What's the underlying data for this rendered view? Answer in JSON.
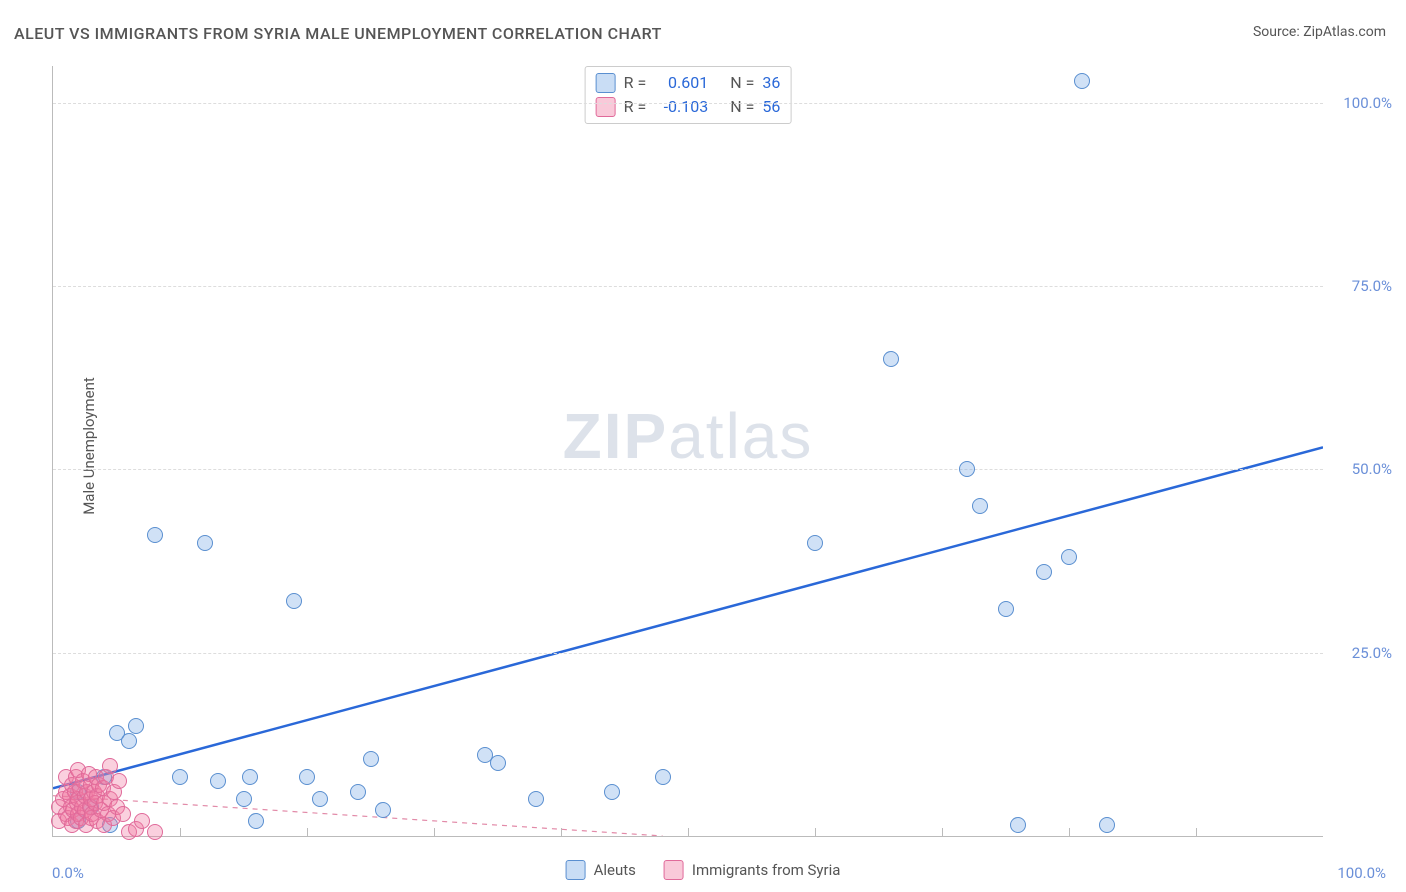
{
  "title": "ALEUT VS IMMIGRANTS FROM SYRIA MALE UNEMPLOYMENT CORRELATION CHART",
  "source": "Source: ZipAtlas.com",
  "ylabel": "Male Unemployment",
  "watermark_bold": "ZIP",
  "watermark_light": "atlas",
  "chart": {
    "type": "scatter",
    "xlim": [
      0,
      100
    ],
    "ylim": [
      0,
      105
    ],
    "yticks": [
      25,
      50,
      75,
      100
    ],
    "ytick_labels": [
      "25.0%",
      "50.0%",
      "75.0%",
      "100.0%"
    ],
    "xtick_minor": [
      10,
      20,
      30,
      40,
      50,
      60,
      70,
      80,
      90
    ],
    "xlabel_0": "0.0%",
    "xlabel_100": "100.0%",
    "background_color": "#ffffff",
    "grid_color": "#dddddd",
    "tick_color": "#6a8fd8",
    "series": [
      {
        "name": "Aleuts",
        "fill": "rgba(120,170,230,0.35)",
        "stroke": "#5a8fd0",
        "marker_radius": 7,
        "trend": {
          "x1": 0,
          "y1": 6.5,
          "x2": 100,
          "y2": 53,
          "color": "#2a68d8",
          "width": 2.5,
          "dash": "none"
        },
        "stats": {
          "R_label": "R =",
          "R": "0.601",
          "N_label": "N =",
          "N": "36"
        },
        "legend_fill": "rgba(120,170,230,0.4)",
        "legend_stroke": "#5a8fd0",
        "points": [
          [
            2,
            2
          ],
          [
            2,
            6
          ],
          [
            3,
            4
          ],
          [
            4,
            8
          ],
          [
            4.5,
            1.5
          ],
          [
            5,
            14
          ],
          [
            6,
            13
          ],
          [
            6.5,
            15
          ],
          [
            8,
            41
          ],
          [
            10,
            8
          ],
          [
            12,
            40
          ],
          [
            13,
            7.5
          ],
          [
            15,
            5
          ],
          [
            15.5,
            8
          ],
          [
            16,
            2
          ],
          [
            19,
            32
          ],
          [
            20,
            8
          ],
          [
            21,
            5
          ],
          [
            24,
            6
          ],
          [
            25,
            10.5
          ],
          [
            26,
            3.5
          ],
          [
            34,
            11
          ],
          [
            35,
            10
          ],
          [
            38,
            5
          ],
          [
            44,
            6
          ],
          [
            48,
            8
          ],
          [
            60,
            40
          ],
          [
            66,
            65
          ],
          [
            72,
            50
          ],
          [
            73,
            45
          ],
          [
            75,
            31
          ],
          [
            76,
            1.5
          ],
          [
            78,
            36
          ],
          [
            80,
            38
          ],
          [
            81,
            103
          ],
          [
            83,
            1.5
          ]
        ]
      },
      {
        "name": "Immigrants from Syria",
        "fill": "rgba(240,120,160,0.35)",
        "stroke": "#e06a9a",
        "marker_radius": 7,
        "trend": {
          "x1": 0,
          "y1": 5.5,
          "x2": 48,
          "y2": 0,
          "color": "#e28aa8",
          "width": 1.2,
          "dash": "5,5"
        },
        "stats": {
          "R_label": "R =",
          "R": "-0.103",
          "N_label": "N =",
          "N": "56"
        },
        "legend_fill": "rgba(240,120,160,0.4)",
        "legend_stroke": "#e06a9a",
        "points": [
          [
            0.5,
            2
          ],
          [
            0.5,
            4
          ],
          [
            0.8,
            5
          ],
          [
            1,
            3
          ],
          [
            1,
            6
          ],
          [
            1,
            8
          ],
          [
            1.2,
            2.5
          ],
          [
            1.3,
            5.5
          ],
          [
            1.4,
            4
          ],
          [
            1.5,
            1.5
          ],
          [
            1.5,
            7
          ],
          [
            1.6,
            3.5
          ],
          [
            1.7,
            6
          ],
          [
            1.8,
            2
          ],
          [
            1.8,
            8
          ],
          [
            1.9,
            4.5
          ],
          [
            2,
            3
          ],
          [
            2,
            5
          ],
          [
            2,
            9
          ],
          [
            2.1,
            6.5
          ],
          [
            2.2,
            2.5
          ],
          [
            2.3,
            4
          ],
          [
            2.4,
            7.5
          ],
          [
            2.5,
            3.5
          ],
          [
            2.5,
            5.5
          ],
          [
            2.6,
            1.5
          ],
          [
            2.7,
            6
          ],
          [
            2.8,
            8.5
          ],
          [
            2.9,
            4
          ],
          [
            3,
            2.5
          ],
          [
            3,
            5
          ],
          [
            3,
            7
          ],
          [
            3.1,
            3
          ],
          [
            3.2,
            6
          ],
          [
            3.3,
            4.5
          ],
          [
            3.4,
            8
          ],
          [
            3.5,
            2
          ],
          [
            3.5,
            5.5
          ],
          [
            3.6,
            7
          ],
          [
            3.8,
            3.5
          ],
          [
            3.9,
            6.5
          ],
          [
            4,
            1.5
          ],
          [
            4,
            4.5
          ],
          [
            4.2,
            8
          ],
          [
            4.3,
            3
          ],
          [
            4.5,
            5
          ],
          [
            4.5,
            9.5
          ],
          [
            4.7,
            2.5
          ],
          [
            4.8,
            6
          ],
          [
            5,
            4
          ],
          [
            5.2,
            7.5
          ],
          [
            5.5,
            3
          ],
          [
            6,
            0.5
          ],
          [
            6.5,
            1
          ],
          [
            7,
            2
          ],
          [
            8,
            0.5
          ]
        ]
      }
    ],
    "legend": {
      "items": [
        {
          "label": "Aleuts"
        },
        {
          "label": "Immigrants from Syria"
        }
      ]
    }
  }
}
